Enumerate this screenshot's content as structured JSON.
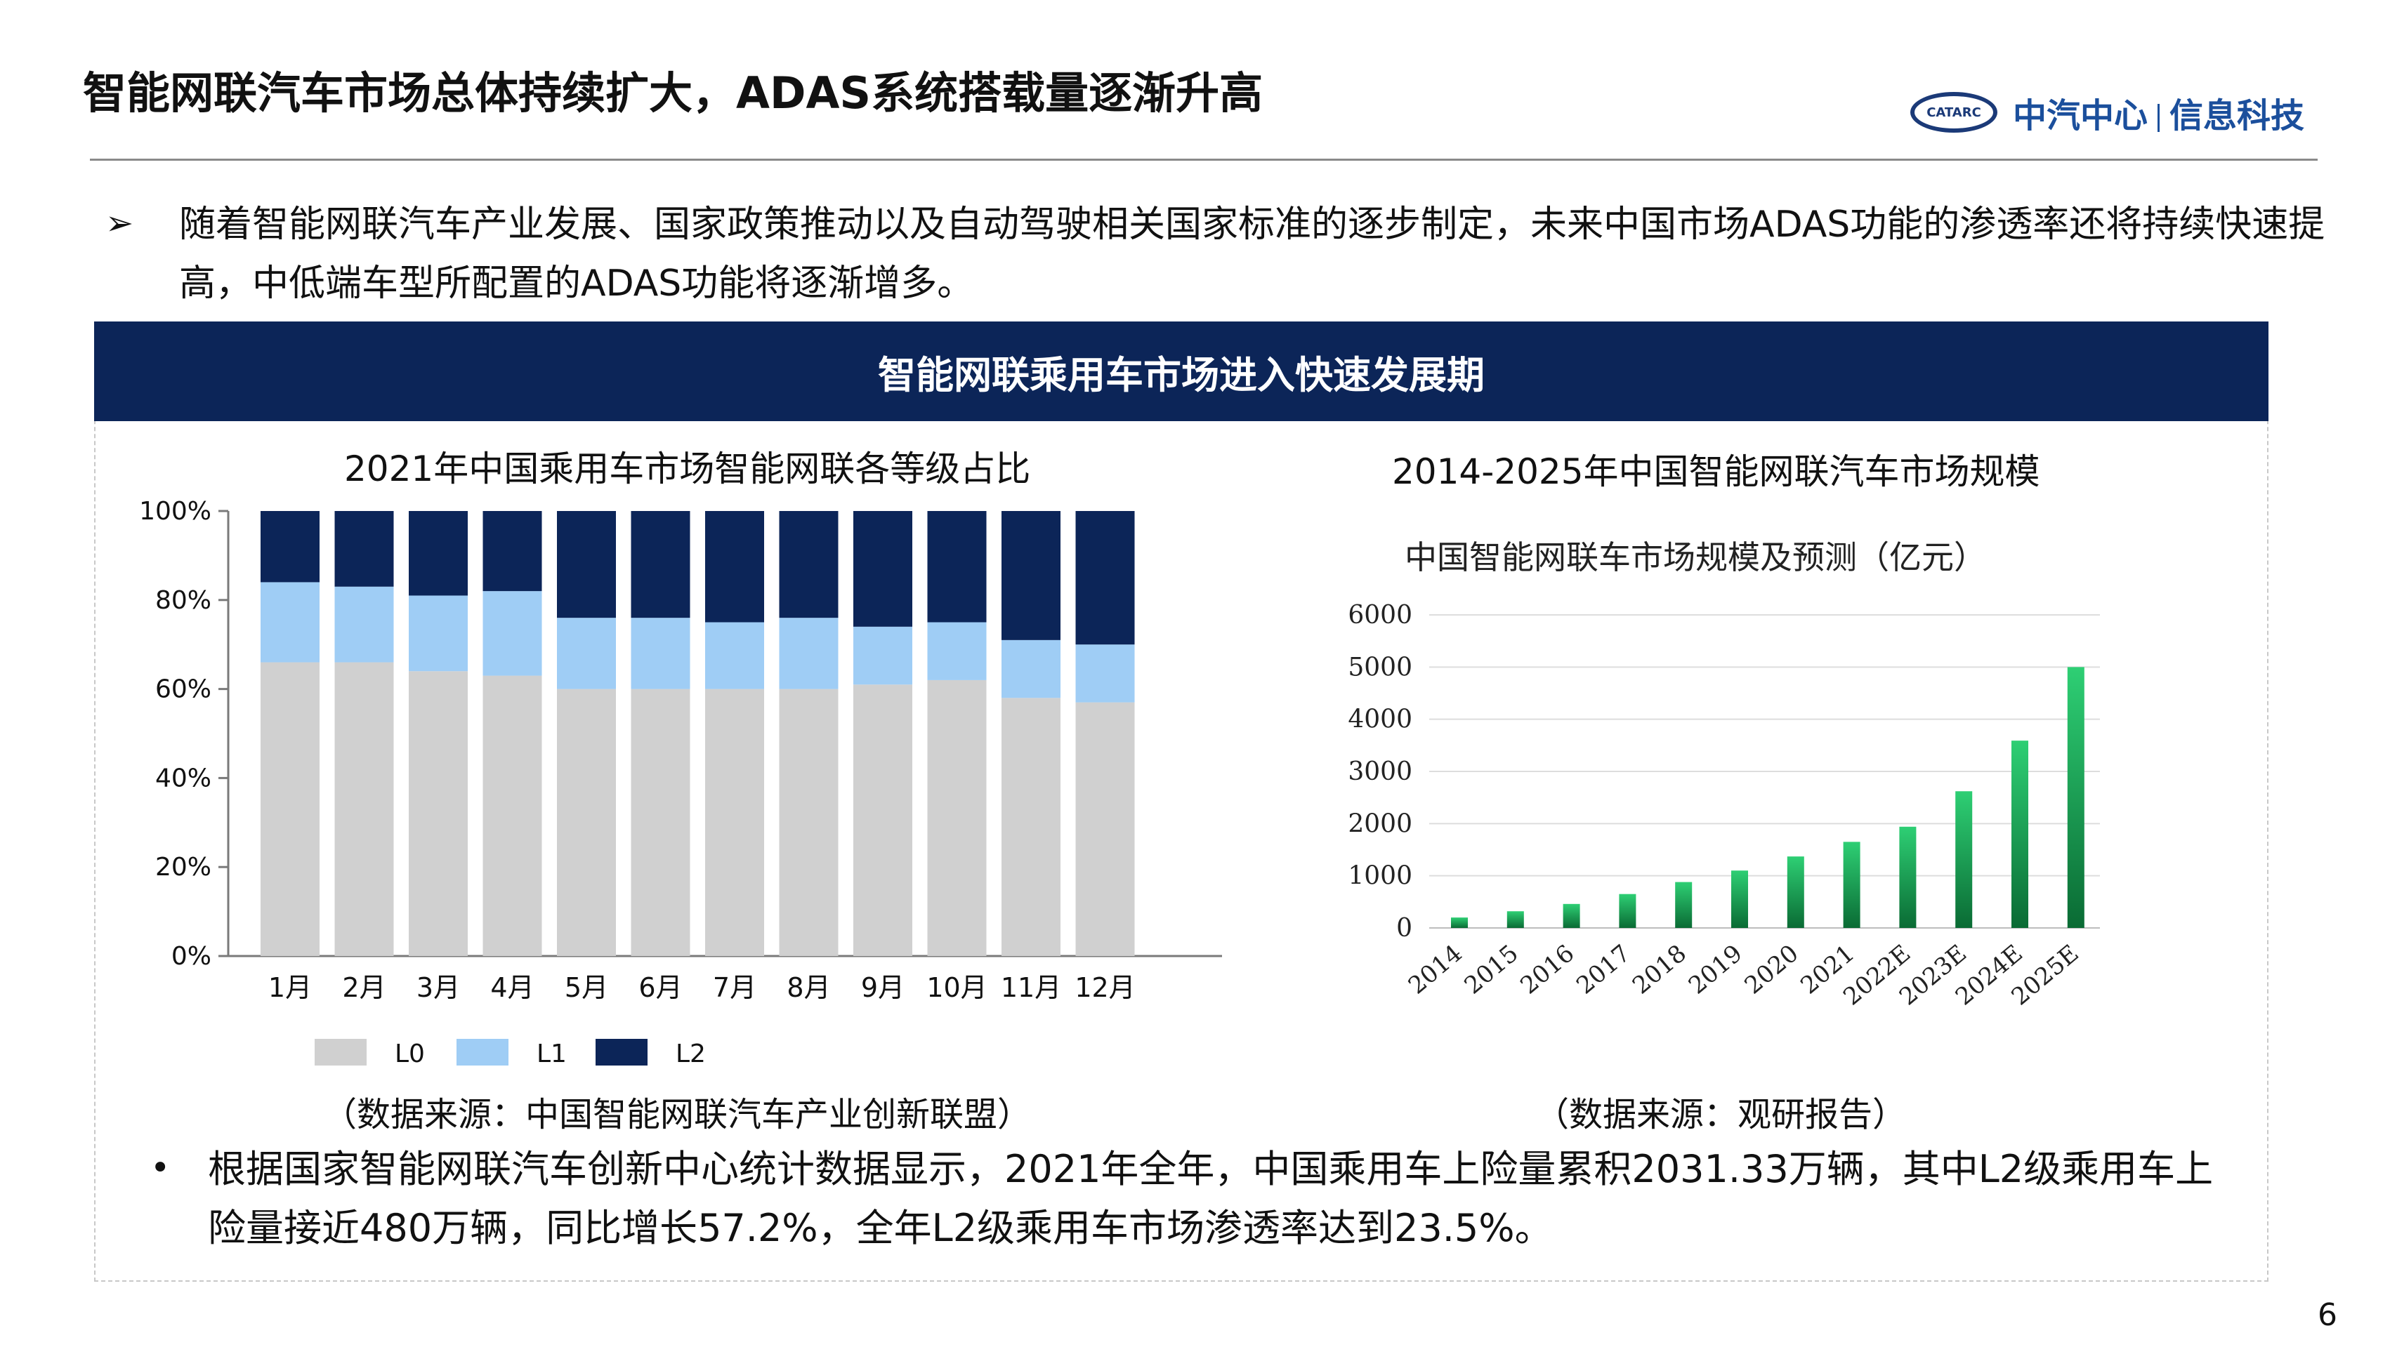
{
  "slide": {
    "title": "智能网联汽车市场总体持续扩大，ADAS系统搭载量逐渐升高",
    "logo": {
      "oval_text": "CATARC",
      "brand": "中汽中心",
      "division": "信息科技"
    },
    "intro_bullet": "➢",
    "intro_text": "随着智能网联汽车产业发展、国家政策推动以及自动驾驶相关国家标准的逐步制定，未来中国市场ADAS功能的渗透率还将持续快速提高，中低端车型所配置的ADAS功能将逐渐增多。",
    "panel_header": "智能网联乘用车市场进入快速发展期",
    "summary_bullet": "•",
    "summary_text": "根据国家智能网联汽车创新中心统计数据显示，2021年全年，中国乘用车上险量累积2031.33万辆，其中L2级乘用车上险量接近480万辆，同比增长57.2%，全年L2级乘用车市场渗透率达到23.5%。",
    "page_number": "6"
  },
  "chart_data": [
    {
      "type": "bar",
      "stacked": true,
      "title": "2021年中国乘用车市场智能网联各等级占比",
      "source": "（数据来源：中国智能网联汽车产业创新联盟）",
      "categories": [
        "1月",
        "2月",
        "3月",
        "4月",
        "5月",
        "6月",
        "7月",
        "8月",
        "9月",
        "10月",
        "11月",
        "12月"
      ],
      "y_ticks": [
        "0%",
        "20%",
        "40%",
        "60%",
        "80%",
        "100%"
      ],
      "ylim": [
        0,
        100
      ],
      "legend_position": "bottom-left",
      "colors": {
        "L0": "#d0d0d0",
        "L1": "#9fcdf5",
        "L2": "#0c2558"
      },
      "series": [
        {
          "name": "L0",
          "values": [
            66,
            66,
            64,
            63,
            60,
            60,
            60,
            60,
            61,
            62,
            58,
            57
          ]
        },
        {
          "name": "L1",
          "values": [
            18,
            17,
            17,
            19,
            16,
            16,
            15,
            16,
            13,
            13,
            13,
            13
          ]
        },
        {
          "name": "L2",
          "values": [
            16,
            17,
            19,
            18,
            24,
            24,
            25,
            24,
            26,
            25,
            29,
            30
          ]
        }
      ]
    },
    {
      "type": "bar",
      "title": "2014-2025年中国智能网联汽车市场规模",
      "subtitle": "中国智能网联车市场规模及预测（亿元）",
      "source": "（数据来源：观研报告）",
      "categories": [
        "2014",
        "2015",
        "2016",
        "2017",
        "2018",
        "2019",
        "2020",
        "2021",
        "2022E",
        "2023E",
        "2024E",
        "2025E"
      ],
      "values": [
        200,
        320,
        460,
        650,
        880,
        1100,
        1370,
        1650,
        1940,
        2620,
        3590,
        5000
      ],
      "y_ticks": [
        "0",
        "1000",
        "2000",
        "3000",
        "4000",
        "5000",
        "6000"
      ],
      "ylim": [
        0,
        6000
      ],
      "grid": true,
      "colors": {
        "bar_top": "#2ecf74",
        "bar_bottom": "#0a6b34"
      }
    }
  ]
}
